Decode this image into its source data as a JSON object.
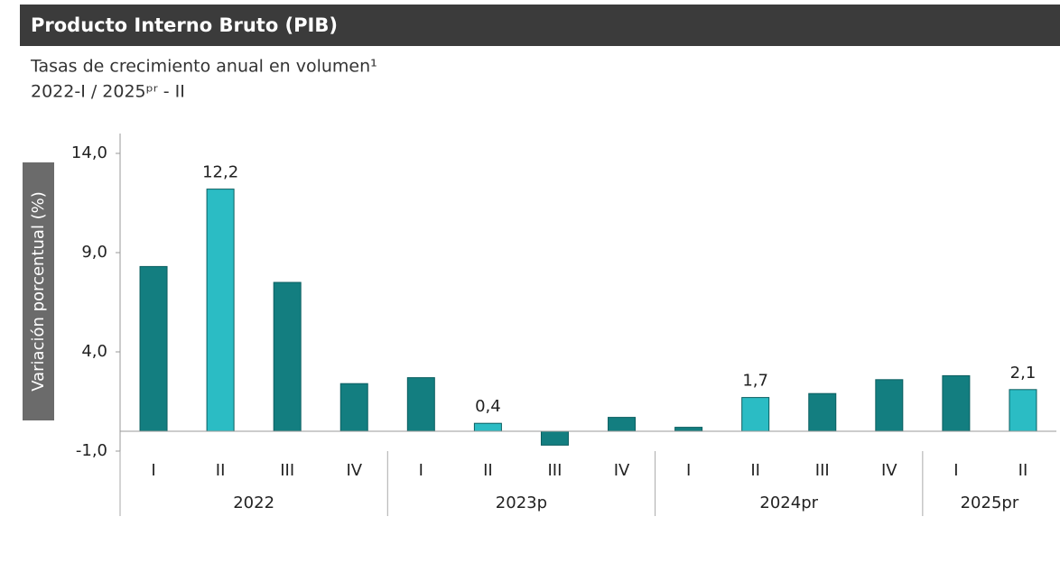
{
  "chart_data": {
    "type": "bar",
    "title": "Producto Interno Bruto (PIB)",
    "subtitle": [
      "Tasas de crecimiento anual en volumen¹",
      "2022-I / 2025ᵖʳ - II"
    ],
    "y_label": "Variación porcentual (%)",
    "categories": [
      "I",
      "II",
      "III",
      "IV",
      "I",
      "II",
      "III",
      "IV",
      "I",
      "II",
      "III",
      "IV",
      "I",
      "II"
    ],
    "groups": [
      {
        "label": "2022",
        "span": 4
      },
      {
        "label": "2023p",
        "span": 4
      },
      {
        "label": "2024pr",
        "span": 4
      },
      {
        "label": "2025pr",
        "span": 2
      }
    ],
    "values": [
      8.3,
      12.2,
      7.5,
      2.4,
      2.7,
      0.4,
      -0.7,
      0.7,
      0.2,
      1.7,
      1.9,
      2.6,
      2.8,
      2.1
    ],
    "value_labels": [
      null,
      "12,2",
      null,
      null,
      null,
      "0,4",
      null,
      null,
      null,
      "1,7",
      null,
      null,
      null,
      "2,1"
    ],
    "colors": [
      "#137e80",
      "#2bbcc4",
      "#137e80",
      "#137e80",
      "#137e80",
      "#2bbcc4",
      "#137e80",
      "#137e80",
      "#137e80",
      "#2bbcc4",
      "#137e80",
      "#137e80",
      "#137e80",
      "#2bbcc4"
    ],
    "ylim": [
      -1,
      15
    ],
    "yticks": [
      {
        "value": -1,
        "label": "-1,0"
      },
      {
        "value": 4,
        "label": "4,0"
      },
      {
        "value": 9,
        "label": "9,0"
      },
      {
        "value": 14,
        "label": "14,0"
      }
    ]
  }
}
